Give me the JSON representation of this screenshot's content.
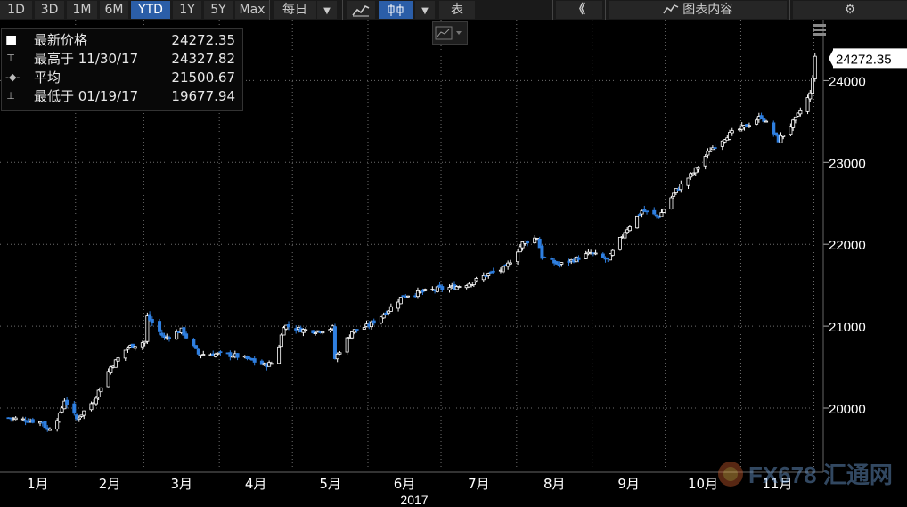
{
  "toolbar": {
    "periods": [
      "1D",
      "3D",
      "1M",
      "6M",
      "YTD",
      "1Y",
      "5Y",
      "Max"
    ],
    "active_period": "YTD",
    "frequency_label": "每日",
    "dropdown_glyph": "▼",
    "table_label": "表",
    "collapse_glyph": "《",
    "chart_content_label": "图表内容",
    "settings_icon": "gear-icon",
    "line_chart_icon": "line-chart-icon",
    "candle_chart_icon": "candlestick-icon",
    "layers_icon": "layers-icon",
    "mini_chart_icon": "mini-chart-icon"
  },
  "legend": {
    "rows": [
      {
        "icon": "■",
        "label": "最新价格",
        "value": "24272.35"
      },
      {
        "icon": "⊤",
        "label": "最高于 11/30/17",
        "value": "24327.82"
      },
      {
        "icon": "-◆-",
        "label": "平均",
        "value": "21500.67"
      },
      {
        "icon": "⊥",
        "label": "最低于 01/19/17",
        "value": "19677.94"
      }
    ]
  },
  "watermark": {
    "text": "FX678 汇通网"
  },
  "colors": {
    "background": "#000000",
    "grid": "#6e6e6e",
    "up": "#ffffff",
    "down": "#2f7fe0",
    "last_price_box": "#ffffff",
    "text": "#ffffff"
  },
  "chart_data": {
    "type": "candlestick",
    "year_label": "2017",
    "x_tick_labels": [
      "1月",
      "2月",
      "3月",
      "4月",
      "5月",
      "6月",
      "7月",
      "8月",
      "9月",
      "10月",
      "11月"
    ],
    "y_ticks": [
      20000,
      21000,
      22000,
      23000,
      24000
    ],
    "ylim": [
      19300,
      24700
    ],
    "last_price": 24272.35,
    "last_price_label": "24272.35",
    "grid": true,
    "close_series": [
      {
        "date": "2017-01-03",
        "close": 19881
      },
      {
        "date": "2017-01-10",
        "close": 19855
      },
      {
        "date": "2017-01-17",
        "close": 19826
      },
      {
        "date": "2017-01-19",
        "close": 19732
      },
      {
        "date": "2017-01-24",
        "close": 19912
      },
      {
        "date": "2017-01-26",
        "close": 20100
      },
      {
        "date": "2017-01-31",
        "close": 19864
      },
      {
        "date": "2017-02-07",
        "close": 20090
      },
      {
        "date": "2017-02-14",
        "close": 20504
      },
      {
        "date": "2017-02-21",
        "close": 20743
      },
      {
        "date": "2017-02-28",
        "close": 20812
      },
      {
        "date": "2017-03-01",
        "close": 21115
      },
      {
        "date": "2017-03-08",
        "close": 20855
      },
      {
        "date": "2017-03-15",
        "close": 20950
      },
      {
        "date": "2017-03-22",
        "close": 20661
      },
      {
        "date": "2017-03-29",
        "close": 20659
      },
      {
        "date": "2017-04-05",
        "close": 20648
      },
      {
        "date": "2017-04-12",
        "close": 20591
      },
      {
        "date": "2017-04-18",
        "close": 20523
      },
      {
        "date": "2017-04-21",
        "close": 20548
      },
      {
        "date": "2017-04-24",
        "close": 20763
      },
      {
        "date": "2017-04-26",
        "close": 21012
      },
      {
        "date": "2017-05-03",
        "close": 20957
      },
      {
        "date": "2017-05-10",
        "close": 20943
      },
      {
        "date": "2017-05-16",
        "close": 20980
      },
      {
        "date": "2017-05-17",
        "close": 20606
      },
      {
        "date": "2017-05-24",
        "close": 20937
      },
      {
        "date": "2017-05-31",
        "close": 21009
      },
      {
        "date": "2017-06-07",
        "close": 21173
      },
      {
        "date": "2017-06-14",
        "close": 21374
      },
      {
        "date": "2017-06-21",
        "close": 21410
      },
      {
        "date": "2017-06-28",
        "close": 21454
      },
      {
        "date": "2017-07-05",
        "close": 21478
      },
      {
        "date": "2017-07-12",
        "close": 21532
      },
      {
        "date": "2017-07-19",
        "close": 21640
      },
      {
        "date": "2017-07-26",
        "close": 21711
      },
      {
        "date": "2017-08-02",
        "close": 22016
      },
      {
        "date": "2017-08-08",
        "close": 22085
      },
      {
        "date": "2017-08-10",
        "close": 21845
      },
      {
        "date": "2017-08-17",
        "close": 21750
      },
      {
        "date": "2017-08-23",
        "close": 21813
      },
      {
        "date": "2017-08-30",
        "close": 21892
      },
      {
        "date": "2017-09-06",
        "close": 21807
      },
      {
        "date": "2017-09-13",
        "close": 22158
      },
      {
        "date": "2017-09-20",
        "close": 22412
      },
      {
        "date": "2017-09-27",
        "close": 22341
      },
      {
        "date": "2017-10-04",
        "close": 22661
      },
      {
        "date": "2017-10-11",
        "close": 22872
      },
      {
        "date": "2017-10-18",
        "close": 23157
      },
      {
        "date": "2017-10-25",
        "close": 23329
      },
      {
        "date": "2017-11-01",
        "close": 23435
      },
      {
        "date": "2017-11-08",
        "close": 23563
      },
      {
        "date": "2017-11-15",
        "close": 23271
      },
      {
        "date": "2017-11-22",
        "close": 23526
      },
      {
        "date": "2017-11-28",
        "close": 23836
      },
      {
        "date": "2017-11-30",
        "close": 24272
      }
    ]
  }
}
